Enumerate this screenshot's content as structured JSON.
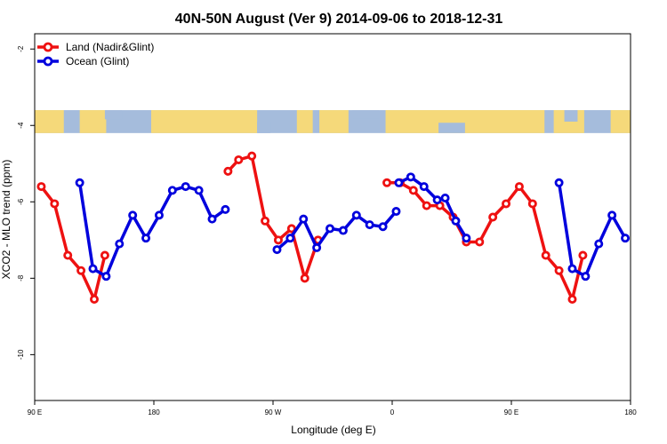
{
  "chart_data": {
    "type": "line",
    "title": "40N-50N August (Ver 9)   2014-09-06 to 2018-12-31",
    "xlabel": "Longitude (deg E)",
    "ylabel": "XCO2 - MLO trend (ppm)",
    "xlim": [
      90,
      540
    ],
    "ylim": [
      -11.2,
      -1.6
    ],
    "y_reversed": true,
    "x_ticks": [
      {
        "value": 90,
        "label": "90 E"
      },
      {
        "value": 180,
        "label": "180"
      },
      {
        "value": 270,
        "label": "90 W"
      },
      {
        "value": 360,
        "label": "0"
      },
      {
        "value": 450,
        "label": "90 E"
      },
      {
        "value": 540,
        "label": "180"
      }
    ],
    "y_ticks": [
      {
        "value": -2,
        "label": "-2"
      },
      {
        "value": -4,
        "label": "-4"
      },
      {
        "value": -6,
        "label": "-6"
      },
      {
        "value": -8,
        "label": "-8"
      },
      {
        "value": -10,
        "label": "-10"
      }
    ],
    "legend_position": "top-left",
    "map_strip": {
      "y_top": -3.6,
      "y_bottom": -4.2,
      "land_color": "#f5d97a",
      "ocean_color": "#a5bcdc"
    },
    "series": [
      {
        "name": "Land (Nadir&Glint)",
        "color": "#ee1111",
        "segments": [
          [
            [
              95,
              -5.6
            ],
            [
              105,
              -6.05
            ],
            [
              115,
              -7.4
            ],
            [
              125,
              -7.8
            ],
            [
              135,
              -8.55
            ],
            [
              143,
              -7.4
            ]
          ],
          [
            [
              236,
              -5.2
            ],
            [
              244,
              -4.9
            ],
            [
              254,
              -4.8
            ],
            [
              264,
              -6.5
            ],
            [
              274,
              -7.0
            ],
            [
              284,
              -6.7
            ],
            [
              294,
              -8.0
            ],
            [
              304,
              -7.0
            ]
          ],
          [
            [
              356,
              -5.5
            ],
            [
              366,
              -5.5
            ],
            [
              376,
              -5.7
            ],
            [
              386,
              -6.1
            ],
            [
              396,
              -6.1
            ],
            [
              406,
              -6.4
            ],
            [
              416,
              -7.05
            ],
            [
              426,
              -7.05
            ],
            [
              436,
              -6.4
            ],
            [
              446,
              -6.05
            ],
            [
              456,
              -5.6
            ],
            [
              466,
              -6.05
            ],
            [
              476,
              -7.4
            ],
            [
              486,
              -7.8
            ],
            [
              496,
              -8.55
            ],
            [
              504,
              -7.4
            ]
          ]
        ]
      },
      {
        "name": "Ocean (Glint)",
        "color": "#0000dd",
        "segments": [
          [
            [
              124,
              -5.5
            ],
            [
              134,
              -7.75
            ],
            [
              144,
              -7.95
            ],
            [
              154,
              -7.1
            ],
            [
              164,
              -6.35
            ],
            [
              174,
              -6.95
            ],
            [
              184,
              -6.35
            ],
            [
              194,
              -5.7
            ],
            [
              204,
              -5.6
            ],
            [
              214,
              -5.7
            ],
            [
              224,
              -6.45
            ],
            [
              234,
              -6.2
            ]
          ],
          [
            [
              273,
              -7.25
            ],
            [
              283,
              -6.95
            ],
            [
              293,
              -6.45
            ],
            [
              303,
              -7.2
            ],
            [
              313,
              -6.7
            ],
            [
              323,
              -6.75
            ],
            [
              333,
              -6.35
            ],
            [
              343,
              -6.6
            ],
            [
              353,
              -6.65
            ],
            [
              363,
              -6.25
            ]
          ],
          [
            [
              365,
              -5.5
            ],
            [
              374,
              -5.35
            ],
            [
              384,
              -5.6
            ],
            [
              394,
              -5.95
            ],
            [
              400,
              -5.9
            ],
            [
              408,
              -6.5
            ],
            [
              416,
              -6.95
            ]
          ],
          [
            [
              486,
              -5.5
            ],
            [
              496,
              -7.75
            ],
            [
              506,
              -7.95
            ],
            [
              516,
              -7.1
            ],
            [
              526,
              -6.35
            ],
            [
              536,
              -6.95
            ]
          ]
        ]
      }
    ]
  }
}
